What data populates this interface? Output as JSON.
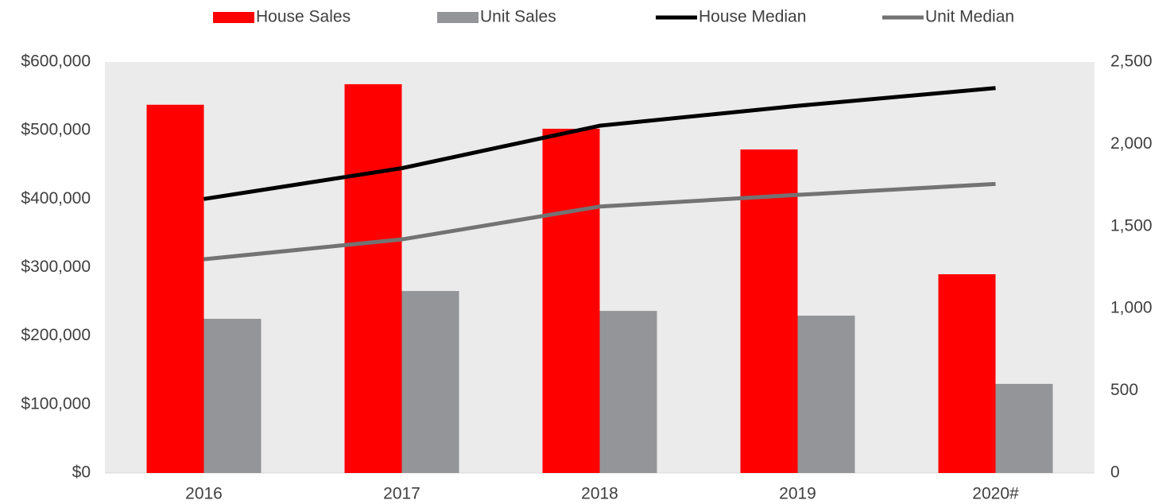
{
  "chart_data": {
    "type": "bar",
    "categories": [
      "2016",
      "2017",
      "2018",
      "2019",
      "2020#"
    ],
    "series": [
      {
        "name": "House Sales",
        "type": "bar",
        "axis": "y2",
        "color": "#ff0000",
        "values": [
          2240,
          2365,
          2094,
          1968,
          1209
        ]
      },
      {
        "name": "Unit Sales",
        "type": "bar",
        "axis": "y2",
        "color": "#939598",
        "values": [
          938,
          1107,
          986,
          957,
          542
        ]
      },
      {
        "name": "House Median",
        "type": "line",
        "axis": "y",
        "color": "#000000",
        "values": [
          400000,
          445000,
          507000,
          536000,
          562000
        ]
      },
      {
        "name": "Unit Median",
        "type": "line",
        "axis": "y",
        "color": "#737373",
        "values": [
          312000,
          341000,
          389000,
          406000,
          422000
        ]
      }
    ],
    "ylim": [
      0,
      600000
    ],
    "yticks": [
      {
        "value": 0,
        "label": "$0"
      },
      {
        "value": 100000,
        "label": "$100,000"
      },
      {
        "value": 200000,
        "label": "$200,000"
      },
      {
        "value": 300000,
        "label": "$300,000"
      },
      {
        "value": 400000,
        "label": "$400,000"
      },
      {
        "value": 500000,
        "label": "$500,000"
      },
      {
        "value": 600000,
        "label": "$600,000"
      }
    ],
    "y2lim": [
      0,
      2500
    ],
    "y2ticks": [
      0,
      500,
      {
        "value": 1000,
        "label": "1,000"
      },
      {
        "value": 1500,
        "label": "1,500"
      },
      {
        "value": 2000,
        "label": "2,000"
      },
      {
        "value": 2500,
        "label": "2,500"
      }
    ],
    "legend": "top"
  }
}
